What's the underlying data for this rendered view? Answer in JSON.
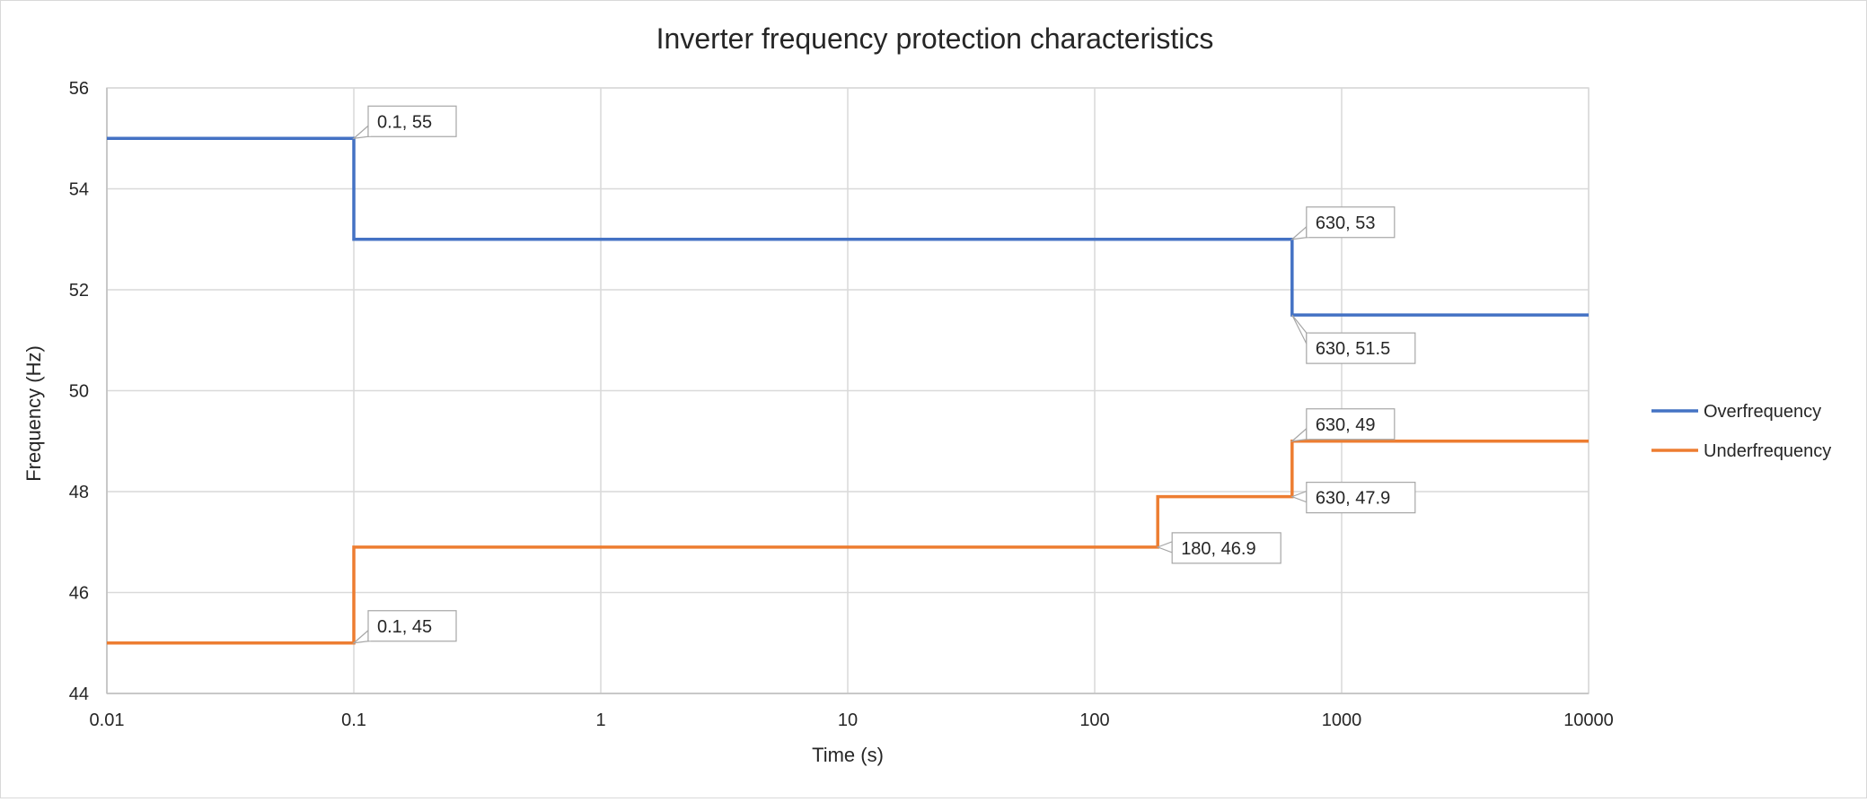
{
  "chart_data": {
    "type": "line",
    "title": "Inverter frequency protection characteristics",
    "xlabel": "Time (s)",
    "ylabel": "Frequency (Hz)",
    "xscale": "log",
    "xlim": [
      0.01,
      10000
    ],
    "ylim": [
      44,
      56
    ],
    "xticks": [
      0.01,
      0.1,
      1,
      10,
      100,
      1000,
      10000
    ],
    "xtick_labels": [
      "0.01",
      "0.1",
      "1",
      "10",
      "100",
      "1000",
      "10000"
    ],
    "yticks": [
      44,
      46,
      48,
      50,
      52,
      54,
      56
    ],
    "ytick_labels": [
      "44",
      "46",
      "48",
      "50",
      "52",
      "54",
      "56"
    ],
    "grid": true,
    "legend_position": "right",
    "series": [
      {
        "name": "Overfrequency",
        "color": "#4472C4",
        "points": [
          [
            0.01,
            55
          ],
          [
            0.1,
            55
          ],
          [
            0.1,
            53
          ],
          [
            630,
            53
          ],
          [
            630,
            51.5
          ],
          [
            10000,
            51.5
          ]
        ]
      },
      {
        "name": "Underfrequency",
        "color": "#ED7D31",
        "points": [
          [
            0.01,
            45
          ],
          [
            0.1,
            45
          ],
          [
            0.1,
            46.9
          ],
          [
            180,
            46.9
          ],
          [
            180,
            47.9
          ],
          [
            630,
            47.9
          ],
          [
            630,
            49
          ],
          [
            10000,
            49
          ]
        ]
      }
    ],
    "annotations": [
      {
        "text": "0.1, 55",
        "x": 0.1,
        "y": 55,
        "placement": "upper-right"
      },
      {
        "text": "630, 53",
        "x": 630,
        "y": 53,
        "placement": "upper-right"
      },
      {
        "text": "630, 51.5",
        "x": 630,
        "y": 51.5,
        "placement": "lower-right"
      },
      {
        "text": "630, 49",
        "x": 630,
        "y": 49,
        "placement": "upper-right"
      },
      {
        "text": "630, 47.9",
        "x": 630,
        "y": 47.9,
        "placement": "right"
      },
      {
        "text": "180, 46.9",
        "x": 180,
        "y": 46.9,
        "placement": "right"
      },
      {
        "text": "0.1, 45",
        "x": 0.1,
        "y": 45,
        "placement": "upper-right"
      }
    ]
  }
}
